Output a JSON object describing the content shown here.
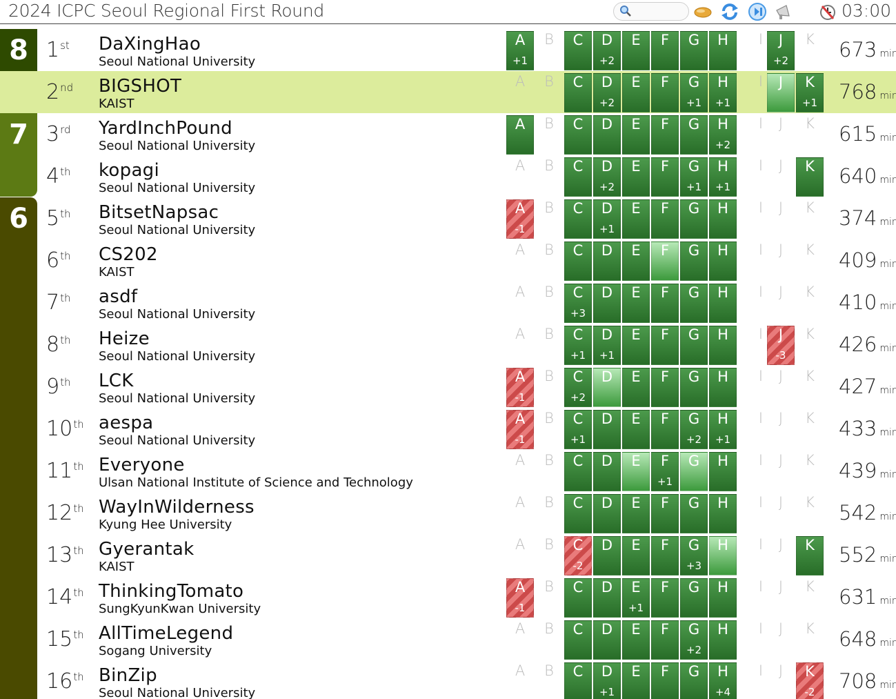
{
  "header": {
    "title": "2024 ICPC Seoul Regional First Round",
    "clock": "03:00"
  },
  "groups": [
    {
      "label": "8",
      "top": 0
    },
    {
      "label": "8",
      "top": 1
    },
    {
      "label": "7",
      "top": 2
    },
    {
      "label": "6",
      "top": 4
    }
  ],
  "problems": [
    "A",
    "B",
    "C",
    "D",
    "E",
    "F",
    "G",
    "H",
    "I",
    "J",
    "K"
  ],
  "unit": "min.",
  "rows": [
    {
      "rank": "1",
      "suffix": "st",
      "team": "DaXingHao",
      "univ": "Seoul National University",
      "score": "673",
      "hl": false,
      "cells": [
        [
          "ac",
          "+1"
        ],
        [
          "none",
          ""
        ],
        [
          "ac",
          ""
        ],
        [
          "ac",
          "+2"
        ],
        [
          "ac",
          ""
        ],
        [
          "ac",
          ""
        ],
        [
          "ac",
          ""
        ],
        [
          "ac",
          ""
        ],
        [
          "none",
          ""
        ],
        [
          "ac",
          "+2"
        ],
        [
          "none",
          ""
        ]
      ]
    },
    {
      "rank": "2",
      "suffix": "nd",
      "team": "BIGSHOT",
      "univ": "KAIST",
      "score": "768",
      "hl": true,
      "cells": [
        [
          "none",
          ""
        ],
        [
          "none",
          ""
        ],
        [
          "ac",
          ""
        ],
        [
          "ac",
          "+2"
        ],
        [
          "ac",
          ""
        ],
        [
          "ac",
          ""
        ],
        [
          "ac",
          "+1"
        ],
        [
          "ac",
          "+1"
        ],
        [
          "none",
          ""
        ],
        [
          "fst",
          ""
        ],
        [
          "ac",
          "+1"
        ]
      ]
    },
    {
      "rank": "3",
      "suffix": "rd",
      "team": "YardInchPound",
      "univ": "Seoul National University",
      "score": "615",
      "hl": false,
      "cells": [
        [
          "ac",
          ""
        ],
        [
          "none",
          ""
        ],
        [
          "ac",
          ""
        ],
        [
          "ac",
          ""
        ],
        [
          "ac",
          ""
        ],
        [
          "ac",
          ""
        ],
        [
          "ac",
          ""
        ],
        [
          "ac",
          "+2"
        ],
        [
          "none",
          ""
        ],
        [
          "none",
          ""
        ],
        [
          "none",
          ""
        ]
      ]
    },
    {
      "rank": "4",
      "suffix": "th",
      "team": "kopagi",
      "univ": "Seoul National University",
      "score": "640",
      "hl": false,
      "cells": [
        [
          "none",
          ""
        ],
        [
          "none",
          ""
        ],
        [
          "ac",
          ""
        ],
        [
          "ac",
          "+2"
        ],
        [
          "ac",
          ""
        ],
        [
          "ac",
          ""
        ],
        [
          "ac",
          "+1"
        ],
        [
          "ac",
          "+1"
        ],
        [
          "none",
          ""
        ],
        [
          "none",
          ""
        ],
        [
          "ac",
          ""
        ]
      ]
    },
    {
      "rank": "5",
      "suffix": "th",
      "team": "BitsetNapsac",
      "univ": "Seoul National University",
      "score": "374",
      "hl": false,
      "cells": [
        [
          "wa",
          "-1"
        ],
        [
          "none",
          ""
        ],
        [
          "ac",
          ""
        ],
        [
          "ac",
          "+1"
        ],
        [
          "ac",
          ""
        ],
        [
          "ac",
          ""
        ],
        [
          "ac",
          ""
        ],
        [
          "ac",
          ""
        ],
        [
          "none",
          ""
        ],
        [
          "none",
          ""
        ],
        [
          "none",
          ""
        ]
      ]
    },
    {
      "rank": "6",
      "suffix": "th",
      "team": "CS202",
      "univ": "KAIST",
      "score": "409",
      "hl": false,
      "cells": [
        [
          "none",
          ""
        ],
        [
          "none",
          ""
        ],
        [
          "ac",
          ""
        ],
        [
          "ac",
          ""
        ],
        [
          "ac",
          ""
        ],
        [
          "fst",
          ""
        ],
        [
          "ac",
          ""
        ],
        [
          "ac",
          ""
        ],
        [
          "none",
          ""
        ],
        [
          "none",
          ""
        ],
        [
          "none",
          ""
        ]
      ]
    },
    {
      "rank": "7",
      "suffix": "th",
      "team": "asdf",
      "univ": "Seoul National University",
      "score": "410",
      "hl": false,
      "cells": [
        [
          "none",
          ""
        ],
        [
          "none",
          ""
        ],
        [
          "ac",
          "+3"
        ],
        [
          "ac",
          ""
        ],
        [
          "ac",
          ""
        ],
        [
          "ac",
          ""
        ],
        [
          "ac",
          ""
        ],
        [
          "ac",
          ""
        ],
        [
          "none",
          ""
        ],
        [
          "none",
          ""
        ],
        [
          "none",
          ""
        ]
      ]
    },
    {
      "rank": "8",
      "suffix": "th",
      "team": "Heize",
      "univ": "Seoul National University",
      "score": "426",
      "hl": false,
      "cells": [
        [
          "none",
          ""
        ],
        [
          "none",
          ""
        ],
        [
          "ac",
          "+1"
        ],
        [
          "ac",
          "+1"
        ],
        [
          "ac",
          ""
        ],
        [
          "ac",
          ""
        ],
        [
          "ac",
          ""
        ],
        [
          "ac",
          ""
        ],
        [
          "none",
          ""
        ],
        [
          "wa",
          "-3"
        ],
        [
          "none",
          ""
        ]
      ]
    },
    {
      "rank": "9",
      "suffix": "th",
      "team": "LCK",
      "univ": "Seoul National University",
      "score": "427",
      "hl": false,
      "cells": [
        [
          "wa",
          "-1"
        ],
        [
          "none",
          ""
        ],
        [
          "ac",
          "+2"
        ],
        [
          "fst",
          ""
        ],
        [
          "ac",
          ""
        ],
        [
          "ac",
          ""
        ],
        [
          "ac",
          ""
        ],
        [
          "ac",
          ""
        ],
        [
          "none",
          ""
        ],
        [
          "none",
          ""
        ],
        [
          "none",
          ""
        ]
      ]
    },
    {
      "rank": "10",
      "suffix": "th",
      "team": "aespa",
      "univ": "Seoul National University",
      "score": "433",
      "hl": false,
      "cells": [
        [
          "wa",
          "-1"
        ],
        [
          "none",
          ""
        ],
        [
          "ac",
          "+1"
        ],
        [
          "ac",
          ""
        ],
        [
          "ac",
          ""
        ],
        [
          "ac",
          ""
        ],
        [
          "ac",
          "+2"
        ],
        [
          "ac",
          "+1"
        ],
        [
          "none",
          ""
        ],
        [
          "none",
          ""
        ],
        [
          "none",
          ""
        ]
      ]
    },
    {
      "rank": "11",
      "suffix": "th",
      "team": "Everyone",
      "univ": "Ulsan National Institute of Science and Technology",
      "score": "439",
      "hl": false,
      "cells": [
        [
          "none",
          ""
        ],
        [
          "none",
          ""
        ],
        [
          "ac",
          ""
        ],
        [
          "ac",
          ""
        ],
        [
          "fst",
          ""
        ],
        [
          "ac",
          "+1"
        ],
        [
          "fst",
          ""
        ],
        [
          "ac",
          ""
        ],
        [
          "none",
          ""
        ],
        [
          "none",
          ""
        ],
        [
          "none",
          ""
        ]
      ]
    },
    {
      "rank": "12",
      "suffix": "th",
      "team": "WayInWilderness",
      "univ": "Kyung Hee University",
      "score": "542",
      "hl": false,
      "cells": [
        [
          "none",
          ""
        ],
        [
          "none",
          ""
        ],
        [
          "ac",
          ""
        ],
        [
          "ac",
          ""
        ],
        [
          "ac",
          ""
        ],
        [
          "ac",
          ""
        ],
        [
          "ac",
          ""
        ],
        [
          "ac",
          ""
        ],
        [
          "none",
          ""
        ],
        [
          "none",
          ""
        ],
        [
          "none",
          ""
        ]
      ]
    },
    {
      "rank": "13",
      "suffix": "th",
      "team": "Gyerantak",
      "univ": "KAIST",
      "score": "552",
      "hl": false,
      "cells": [
        [
          "none",
          ""
        ],
        [
          "none",
          ""
        ],
        [
          "wa",
          "-2"
        ],
        [
          "ac",
          ""
        ],
        [
          "ac",
          ""
        ],
        [
          "ac",
          ""
        ],
        [
          "ac",
          "+3"
        ],
        [
          "fst",
          ""
        ],
        [
          "none",
          ""
        ],
        [
          "none",
          ""
        ],
        [
          "ac",
          ""
        ]
      ]
    },
    {
      "rank": "14",
      "suffix": "th",
      "team": "ThinkingTomato",
      "univ": "SungKyunKwan University",
      "score": "631",
      "hl": false,
      "cells": [
        [
          "wa",
          "-1"
        ],
        [
          "none",
          ""
        ],
        [
          "ac",
          ""
        ],
        [
          "ac",
          ""
        ],
        [
          "ac",
          "+1"
        ],
        [
          "ac",
          ""
        ],
        [
          "ac",
          ""
        ],
        [
          "ac",
          ""
        ],
        [
          "none",
          ""
        ],
        [
          "none",
          ""
        ],
        [
          "none",
          ""
        ]
      ]
    },
    {
      "rank": "15",
      "suffix": "th",
      "team": "AllTimeLegend",
      "univ": "Sogang University",
      "score": "648",
      "hl": false,
      "cells": [
        [
          "none",
          ""
        ],
        [
          "none",
          ""
        ],
        [
          "ac",
          ""
        ],
        [
          "ac",
          ""
        ],
        [
          "ac",
          ""
        ],
        [
          "ac",
          ""
        ],
        [
          "ac",
          "+2"
        ],
        [
          "ac",
          ""
        ],
        [
          "none",
          ""
        ],
        [
          "none",
          ""
        ],
        [
          "none",
          ""
        ]
      ]
    },
    {
      "rank": "16",
      "suffix": "th",
      "team": "BinZip",
      "univ": "Seoul National University",
      "score": "708",
      "hl": false,
      "cells": [
        [
          "none",
          ""
        ],
        [
          "none",
          ""
        ],
        [
          "ac",
          ""
        ],
        [
          "ac",
          "+1"
        ],
        [
          "ac",
          ""
        ],
        [
          "ac",
          ""
        ],
        [
          "ac",
          ""
        ],
        [
          "ac",
          "+4"
        ],
        [
          "none",
          ""
        ],
        [
          "none",
          ""
        ],
        [
          "wa",
          "-2"
        ]
      ]
    }
  ]
}
